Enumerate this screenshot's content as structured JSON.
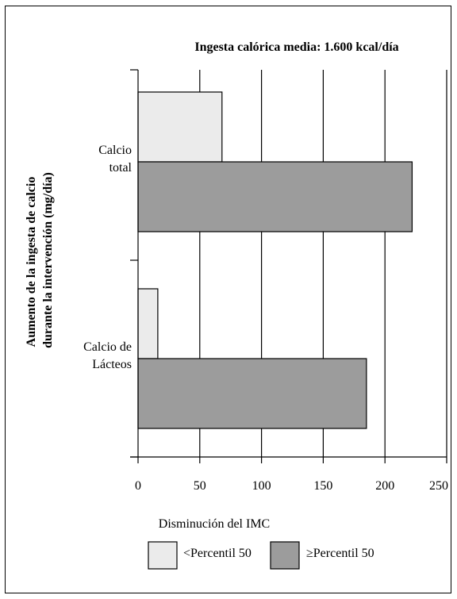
{
  "chart_data": {
    "type": "bar",
    "orientation": "horizontal",
    "title": "Ingesta calórica media: 1.600 kcal/día",
    "xlabel": "Disminución del IMC",
    "ylabel_lines": [
      "Aumento de la ingesta de calcio",
      "durante la intervención (mg/día)"
    ],
    "categories": [
      {
        "lines": [
          "Calcio",
          "total"
        ]
      },
      {
        "lines": [
          "Calcio de",
          "Lácteos"
        ]
      }
    ],
    "series": [
      {
        "name": "<Percentil 50",
        "color": "#ebebeb",
        "values": [
          68,
          16
        ]
      },
      {
        "name": "≥Percentil 50",
        "color": "#9c9c9c",
        "values": [
          222,
          185
        ]
      }
    ],
    "xlim": [
      0,
      250
    ],
    "xticks": [
      0,
      50,
      100,
      150,
      200,
      250
    ],
    "grid": "vertical",
    "legend_position": "bottom"
  }
}
